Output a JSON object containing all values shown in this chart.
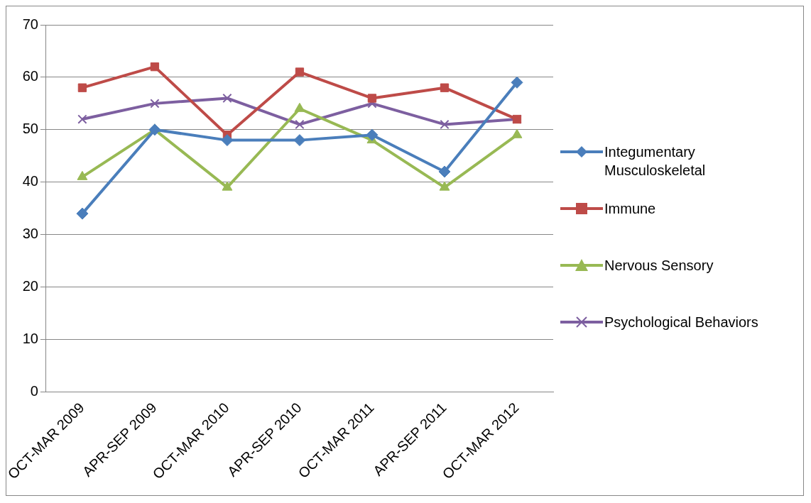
{
  "chart_data": {
    "type": "line",
    "categories": [
      "OCT-MAR 2009",
      "APR-SEP 2009",
      "OCT-MAR 2010",
      "APR-SEP 2010",
      "OCT-MAR 2011",
      "APR-SEP 2011",
      "OCT-MAR 2012"
    ],
    "series": [
      {
        "name": "Integumentary Musculoskeletal",
        "color": "#4a7ebb",
        "marker": "diamond",
        "values": [
          34,
          50,
          48,
          48,
          49,
          42,
          59
        ]
      },
      {
        "name": "Immune",
        "color": "#be4b48",
        "marker": "square",
        "values": [
          58,
          62,
          49,
          61,
          56,
          58,
          52
        ]
      },
      {
        "name": "Nervous Sensory",
        "color": "#98b954",
        "marker": "triangle",
        "values": [
          41,
          50,
          39,
          54,
          48,
          39,
          49
        ]
      },
      {
        "name": "Psychological Behaviors",
        "color": "#7d5fa0",
        "marker": "cross",
        "values": [
          52,
          55,
          56,
          51,
          55,
          51,
          52
        ]
      }
    ],
    "ylim": [
      0,
      70
    ],
    "yticks": [
      0,
      10,
      20,
      30,
      40,
      50,
      60,
      70
    ],
    "grid": "y",
    "legend": "right",
    "line_style": "solid"
  }
}
